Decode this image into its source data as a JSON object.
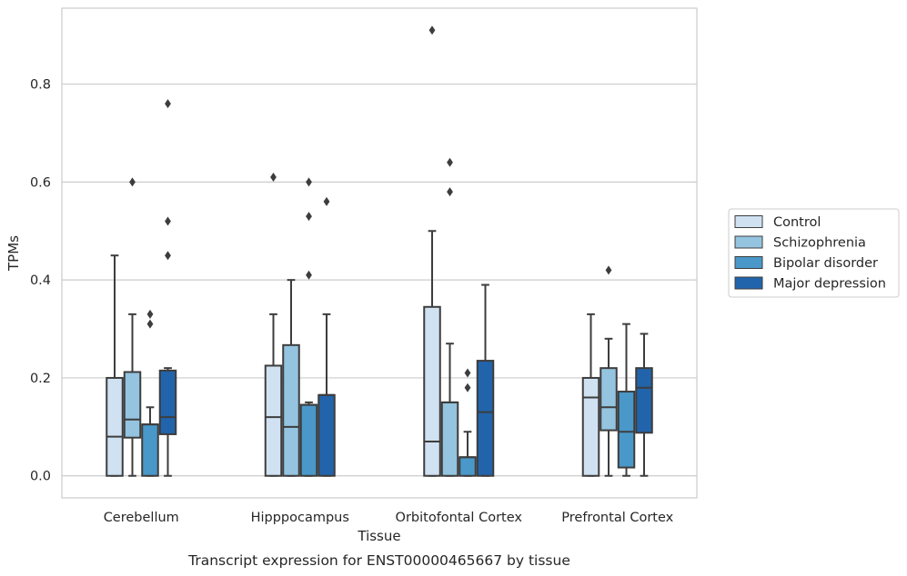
{
  "chart_data": {
    "type": "box",
    "xlabel": "Tissue",
    "ylabel": "TPMs",
    "caption": "Transcript expression for ENST00000465667 by tissue",
    "ylim": [
      -0.045,
      0.955
    ],
    "yticks": [
      "0.0",
      "0.2",
      "0.4",
      "0.6",
      "0.8"
    ],
    "ytick_values": [
      0.0,
      0.2,
      0.4,
      0.6,
      0.8
    ],
    "grid": "horizontal",
    "legend_position": "right",
    "categories": [
      "Cerebellum",
      "Hipppocampus",
      "Orbitofontal Cortex",
      "Prefrontal Cortex"
    ],
    "series": [
      {
        "name": "Control",
        "color": "#d0e1f2",
        "boxes": [
          {
            "whislo": 0.0,
            "q1": 0.0,
            "med": 0.08,
            "q3": 0.2,
            "whishi": 0.45,
            "fliers": []
          },
          {
            "whislo": 0.0,
            "q1": 0.0,
            "med": 0.12,
            "q3": 0.225,
            "whishi": 0.33,
            "fliers": [
              0.61
            ]
          },
          {
            "whislo": 0.0,
            "q1": 0.0,
            "med": 0.07,
            "q3": 0.345,
            "whishi": 0.5,
            "fliers": [
              0.91
            ]
          },
          {
            "whislo": 0.0,
            "q1": 0.0,
            "med": 0.16,
            "q3": 0.2,
            "whishi": 0.33,
            "fliers": []
          }
        ]
      },
      {
        "name": "Schizophrenia",
        "color": "#94c4df",
        "boxes": [
          {
            "whislo": 0.0,
            "q1": 0.078,
            "med": 0.115,
            "q3": 0.212,
            "whishi": 0.33,
            "fliers": [
              0.6
            ]
          },
          {
            "whislo": 0.0,
            "q1": 0.0,
            "med": 0.1,
            "q3": 0.267,
            "whishi": 0.4,
            "fliers": []
          },
          {
            "whislo": 0.0,
            "q1": 0.0,
            "med": 0.15,
            "q3": 0.15,
            "whishi": 0.27,
            "fliers": [
              0.64,
              0.58
            ]
          },
          {
            "whislo": 0.0,
            "q1": 0.093,
            "med": 0.14,
            "q3": 0.22,
            "whishi": 0.28,
            "fliers": [
              0.42
            ]
          }
        ]
      },
      {
        "name": "Bipolar disorder",
        "color": "#4a98c9",
        "boxes": [
          {
            "whislo": 0.0,
            "q1": 0.0,
            "med": 0.105,
            "q3": 0.105,
            "whishi": 0.14,
            "fliers": [
              0.33,
              0.31
            ]
          },
          {
            "whislo": 0.0,
            "q1": 0.0,
            "med": 0.145,
            "q3": 0.145,
            "whishi": 0.15,
            "fliers": [
              0.6,
              0.53,
              0.41
            ]
          },
          {
            "whislo": 0.0,
            "q1": 0.0,
            "med": 0.038,
            "q3": 0.038,
            "whishi": 0.09,
            "fliers": [
              0.21,
              0.18
            ]
          },
          {
            "whislo": 0.0,
            "q1": 0.017,
            "med": 0.09,
            "q3": 0.172,
            "whishi": 0.31,
            "fliers": []
          }
        ]
      },
      {
        "name": "Major depression",
        "color": "#2164ab",
        "boxes": [
          {
            "whislo": 0.0,
            "q1": 0.085,
            "med": 0.12,
            "q3": 0.215,
            "whishi": 0.22,
            "fliers": [
              0.76,
              0.52,
              0.45
            ]
          },
          {
            "whislo": 0.0,
            "q1": 0.0,
            "med": 0.165,
            "q3": 0.165,
            "whishi": 0.33,
            "fliers": [
              0.56
            ]
          },
          {
            "whislo": 0.0,
            "q1": 0.0,
            "med": 0.13,
            "q3": 0.235,
            "whishi": 0.39,
            "fliers": []
          },
          {
            "whislo": 0.0,
            "q1": 0.088,
            "med": 0.18,
            "q3": 0.22,
            "whishi": 0.29,
            "fliers": []
          }
        ]
      }
    ]
  }
}
